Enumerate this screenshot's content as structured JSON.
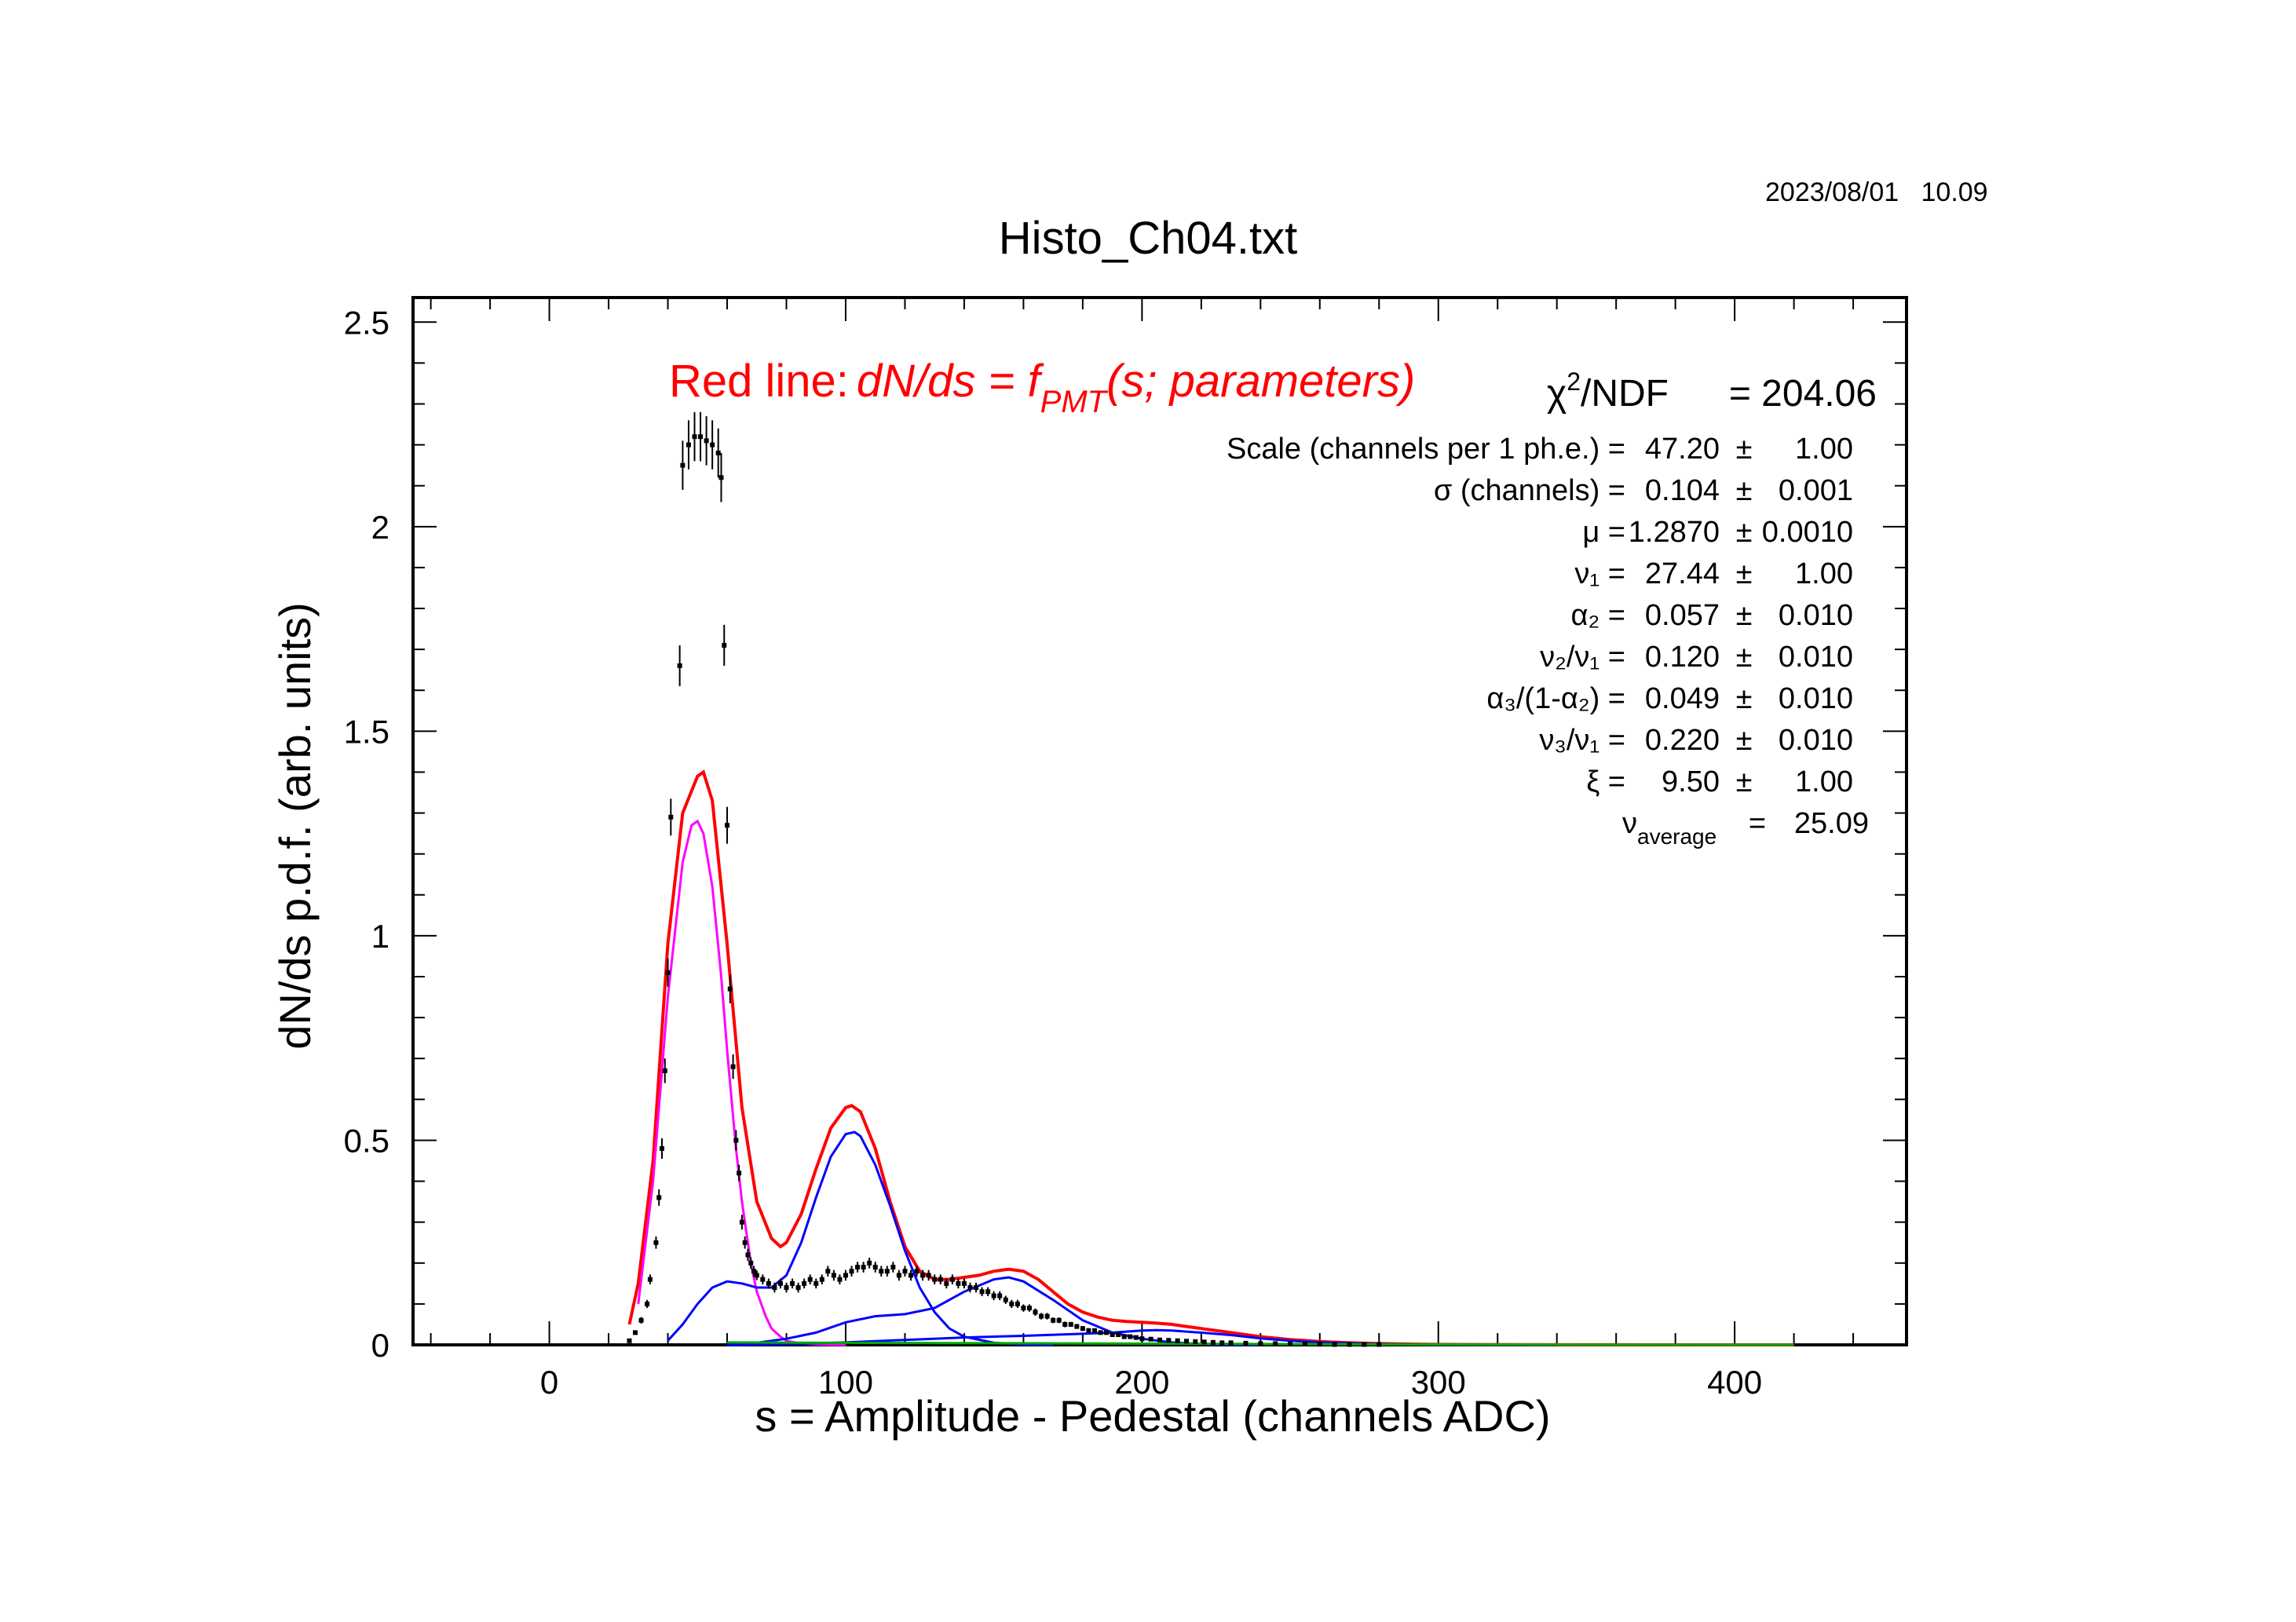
{
  "timestamp": "2023/08/01   10.09",
  "chart_data": {
    "type": "scatter",
    "title": "Histo_Ch04.txt",
    "xlabel": "s = Amplitude - Pedestal (channels ADC)",
    "ylabel": "dN/ds p.d.f. (arb. units)",
    "xlim": [
      -46,
      458
    ],
    "ylim": [
      0,
      2.56
    ],
    "x_ticks": [
      0,
      100,
      200,
      300,
      400
    ],
    "x_tick_labels": [
      "0",
      "100",
      "200",
      "300",
      "400"
    ],
    "y_ticks": [
      0,
      0.5,
      1,
      1.5,
      2,
      2.5
    ],
    "y_tick_labels": [
      "0",
      "0.5",
      "1",
      "1.5",
      "2",
      "2.5"
    ],
    "grid": false,
    "colors": {
      "total_fit": "#ff0000",
      "single_pe": "#ff00ff",
      "multi_pe": "#0000ff",
      "background": "#00aa00",
      "data": "#000000"
    },
    "data_points": {
      "x": [
        27,
        29,
        31,
        33,
        34,
        36,
        37,
        38,
        39,
        40,
        41,
        44,
        45,
        47,
        49,
        51,
        53,
        55,
        57,
        58,
        59,
        60,
        61,
        62,
        63,
        64,
        65,
        66,
        67,
        68,
        69,
        70,
        72,
        74,
        76,
        78,
        80,
        82,
        84,
        86,
        88,
        90,
        92,
        94,
        96,
        98,
        100,
        102,
        104,
        106,
        108,
        110,
        112,
        114,
        116,
        118,
        120,
        122,
        124,
        126,
        128,
        130,
        132,
        134,
        136,
        138,
        140,
        142,
        144,
        146,
        148,
        150,
        152,
        154,
        156,
        158,
        160,
        162,
        164,
        166,
        168,
        170,
        172,
        174,
        176,
        178,
        180,
        182,
        184,
        186,
        188,
        190,
        192,
        194,
        196,
        198,
        200,
        203,
        206,
        209,
        212,
        215,
        218,
        221,
        224,
        227,
        230,
        235,
        240,
        245,
        250,
        255,
        260,
        265,
        270,
        275,
        280
      ],
      "y": [
        0.01,
        0.03,
        0.06,
        0.1,
        0.16,
        0.25,
        0.36,
        0.48,
        0.67,
        0.91,
        1.29,
        1.66,
        2.15,
        2.2,
        2.22,
        2.22,
        2.21,
        2.2,
        2.18,
        2.12,
        1.71,
        1.27,
        0.87,
        0.68,
        0.5,
        0.42,
        0.3,
        0.25,
        0.22,
        0.2,
        0.18,
        0.17,
        0.16,
        0.15,
        0.14,
        0.15,
        0.14,
        0.15,
        0.14,
        0.15,
        0.16,
        0.15,
        0.16,
        0.18,
        0.17,
        0.16,
        0.17,
        0.18,
        0.19,
        0.19,
        0.2,
        0.19,
        0.18,
        0.18,
        0.19,
        0.17,
        0.18,
        0.17,
        0.18,
        0.17,
        0.17,
        0.16,
        0.16,
        0.15,
        0.16,
        0.15,
        0.15,
        0.14,
        0.14,
        0.13,
        0.13,
        0.12,
        0.12,
        0.11,
        0.1,
        0.1,
        0.09,
        0.09,
        0.08,
        0.07,
        0.07,
        0.06,
        0.06,
        0.05,
        0.05,
        0.045,
        0.04,
        0.035,
        0.035,
        0.03,
        0.03,
        0.025,
        0.025,
        0.02,
        0.02,
        0.018,
        0.015,
        0.014,
        0.012,
        0.011,
        0.01,
        0.009,
        0.008,
        0.007,
        0.006,
        0.005,
        0.005,
        0.004,
        0.003,
        0.003,
        0.002,
        0.002,
        0.0015,
        0.001,
        0.001,
        0.001,
        0.001
      ],
      "err": [
        0.003,
        0.005,
        0.008,
        0.01,
        0.012,
        0.015,
        0.02,
        0.025,
        0.03,
        0.035,
        0.045,
        0.05,
        0.06,
        0.06,
        0.06,
        0.06,
        0.06,
        0.06,
        0.06,
        0.06,
        0.05,
        0.045,
        0.035,
        0.03,
        0.025,
        0.02,
        0.018,
        0.015,
        0.015,
        0.014,
        0.013,
        0.012,
        0.012,
        0.012,
        0.012,
        0.012,
        0.012,
        0.012,
        0.012,
        0.012,
        0.012,
        0.012,
        0.012,
        0.013,
        0.013,
        0.012,
        0.013,
        0.013,
        0.013,
        0.013,
        0.013,
        0.013,
        0.013,
        0.013,
        0.013,
        0.013,
        0.013,
        0.013,
        0.013,
        0.013,
        0.013,
        0.012,
        0.012,
        0.012,
        0.012,
        0.012,
        0.012,
        0.012,
        0.012,
        0.011,
        0.011,
        0.011,
        0.011,
        0.01,
        0.01,
        0.01,
        0.009,
        0.009,
        0.009,
        0.008,
        0.008,
        0.007,
        0.007,
        0.007,
        0.006,
        0.006,
        0.006,
        0.005,
        0.005,
        0.005,
        0.005,
        0.004,
        0.004,
        0.004,
        0.004,
        0.004,
        0.003,
        0.003,
        0.003,
        0.003,
        0.003,
        0.003,
        0.003,
        0.002,
        0.002,
        0.002,
        0.002,
        0.002,
        0.002,
        0.002,
        0.002,
        0.002,
        0.001,
        0.001,
        0.001,
        0.001,
        0.001
      ]
    },
    "curves": [
      {
        "name": "total",
        "color_key": "total_fit",
        "x": [
          27,
          30,
          35,
          40,
          45,
          50,
          52,
          55,
          60,
          65,
          70,
          75,
          78,
          80,
          85,
          90,
          95,
          100,
          102,
          105,
          110,
          115,
          120,
          125,
          130,
          135,
          140,
          145,
          150,
          155,
          160,
          165,
          170,
          175,
          180,
          185,
          190,
          195,
          200,
          205,
          210,
          215,
          220,
          230,
          240,
          250,
          260,
          270,
          280,
          290,
          300,
          320,
          340,
          360,
          380,
          400,
          420
        ],
        "y": [
          0.05,
          0.15,
          0.45,
          0.98,
          1.3,
          1.39,
          1.4,
          1.33,
          0.98,
          0.58,
          0.35,
          0.26,
          0.24,
          0.25,
          0.32,
          0.43,
          0.53,
          0.58,
          0.585,
          0.57,
          0.48,
          0.35,
          0.24,
          0.18,
          0.16,
          0.16,
          0.165,
          0.17,
          0.18,
          0.185,
          0.18,
          0.16,
          0.13,
          0.1,
          0.08,
          0.068,
          0.06,
          0.057,
          0.055,
          0.053,
          0.05,
          0.045,
          0.04,
          0.03,
          0.02,
          0.013,
          0.008,
          0.005,
          0.003,
          0.002,
          0.001,
          0.0005,
          0.0002,
          0.0001,
          0,
          0,
          0
        ]
      },
      {
        "name": "single",
        "color_key": "single_pe",
        "x": [
          30,
          35,
          40,
          45,
          48,
          50,
          52,
          55,
          58,
          60,
          63,
          65,
          68,
          70,
          73,
          75,
          78,
          80,
          85,
          90,
          95,
          100
        ],
        "y": [
          0.1,
          0.4,
          0.85,
          1.18,
          1.27,
          1.28,
          1.25,
          1.12,
          0.9,
          0.72,
          0.48,
          0.35,
          0.2,
          0.13,
          0.07,
          0.04,
          0.02,
          0.01,
          0.003,
          0.001,
          0.0003,
          0
        ]
      },
      {
        "name": "pe2a",
        "color_key": "multi_pe",
        "x": [
          40,
          45,
          50,
          55,
          60,
          65,
          70,
          75,
          80,
          85,
          90,
          95,
          100,
          103,
          105,
          110,
          115,
          120,
          125,
          130,
          135,
          140,
          150,
          160,
          170
        ],
        "y": [
          0.01,
          0.05,
          0.1,
          0.14,
          0.155,
          0.15,
          0.14,
          0.14,
          0.17,
          0.25,
          0.36,
          0.46,
          0.515,
          0.52,
          0.51,
          0.44,
          0.34,
          0.23,
          0.14,
          0.08,
          0.04,
          0.02,
          0.005,
          0.001,
          0
        ]
      },
      {
        "name": "pe2b",
        "color_key": "multi_pe",
        "x": [
          60,
          70,
          80,
          90,
          100,
          110,
          120,
          130,
          140,
          150,
          155,
          160,
          170,
          180,
          190,
          200,
          210,
          220,
          230,
          240
        ],
        "y": [
          0.0,
          0.005,
          0.015,
          0.03,
          0.055,
          0.07,
          0.075,
          0.09,
          0.13,
          0.16,
          0.165,
          0.155,
          0.11,
          0.06,
          0.03,
          0.015,
          0.006,
          0.002,
          0.0005,
          0
        ]
      },
      {
        "name": "pe3",
        "color_key": "multi_pe",
        "x": [
          60,
          80,
          100,
          120,
          140,
          160,
          180,
          190,
          200,
          205,
          210,
          220,
          230,
          240,
          250,
          260,
          280,
          300,
          320,
          340
        ],
        "y": [
          0,
          0.002,
          0.006,
          0.012,
          0.018,
          0.022,
          0.027,
          0.03,
          0.035,
          0.036,
          0.035,
          0.03,
          0.024,
          0.016,
          0.01,
          0.006,
          0.002,
          0.0005,
          0.0001,
          0
        ]
      },
      {
        "name": "bg",
        "color_key": "background",
        "x": [
          60,
          100,
          150,
          200,
          250,
          300,
          350,
          400,
          420
        ],
        "y": [
          0.006,
          0.005,
          0.004,
          0.003,
          0.002,
          0.001,
          0.0005,
          0.0002,
          0.0001
        ]
      }
    ],
    "annotations": {
      "formula_lead": "Red line:",
      "formula_head": "dN/ds = f",
      "formula_sub": "PMT",
      "formula_tail": "(s; parameters)",
      "chi2_symbol": "χ",
      "chi2_sup": "2",
      "chi2_rest": "/NDF",
      "chi2_value": "= 204.06",
      "params": [
        {
          "label": "Scale (channels per 1 ph.e.) =",
          "value": "47.20",
          "pm": "±",
          "err": "1.00"
        },
        {
          "label": "σ (channels) =",
          "value": "0.104",
          "pm": "±",
          "err": "0.001"
        },
        {
          "label": "μ  =",
          "value": "1.2870",
          "pm": "±",
          "err": "0.0010"
        },
        {
          "label": "ν₁ =",
          "value": "27.44",
          "pm": "±",
          "err": "1.00"
        },
        {
          "label": "α₂ =",
          "value": "0.057",
          "pm": "±",
          "err": "0.010"
        },
        {
          "label": "ν₂/ν₁ =",
          "value": "0.120",
          "pm": "±",
          "err": "0.010"
        },
        {
          "label": "α₃/(1-α₂) =",
          "value": "0.049",
          "pm": "±",
          "err": "0.010"
        },
        {
          "label": "ν₃/ν₁ =",
          "value": "0.220",
          "pm": "±",
          "err": "0.010"
        },
        {
          "label": "ξ  =",
          "value": "9.50",
          "pm": "±",
          "err": "1.00"
        }
      ],
      "nu_avg_symbol": "ν",
      "nu_avg_sub": "average",
      "nu_avg_eq": "=",
      "nu_avg_value": "25.09"
    }
  }
}
